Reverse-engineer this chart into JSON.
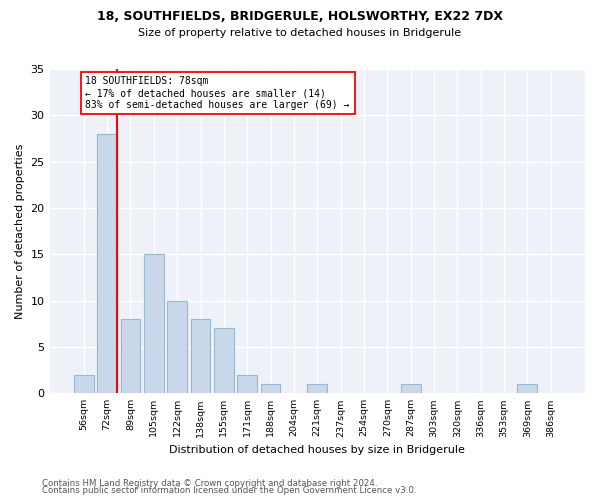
{
  "title": "18, SOUTHFIELDS, BRIDGERULE, HOLSWORTHY, EX22 7DX",
  "subtitle": "Size of property relative to detached houses in Bridgerule",
  "xlabel": "Distribution of detached houses by size in Bridgerule",
  "ylabel": "Number of detached properties",
  "bar_color": "#c8d8ea",
  "bar_edgecolor": "#9ab8cc",
  "bg_color": "#eef2f8",
  "grid_color": "#ffffff",
  "categories": [
    "56sqm",
    "72sqm",
    "89sqm",
    "105sqm",
    "122sqm",
    "138sqm",
    "155sqm",
    "171sqm",
    "188sqm",
    "204sqm",
    "221sqm",
    "237sqm",
    "254sqm",
    "270sqm",
    "287sqm",
    "303sqm",
    "320sqm",
    "336sqm",
    "353sqm",
    "369sqm",
    "386sqm"
  ],
  "values": [
    2,
    28,
    8,
    15,
    10,
    8,
    7,
    2,
    1,
    0,
    1,
    0,
    0,
    0,
    1,
    0,
    0,
    0,
    0,
    1,
    0
  ],
  "annotation_line1": "18 SOUTHFIELDS: 78sqm",
  "annotation_line2": "← 17% of detached houses are smaller (14)",
  "annotation_line3": "83% of semi-detached houses are larger (69) →",
  "vline_index": 1.42,
  "ylim": [
    0,
    35
  ],
  "yticks": [
    0,
    5,
    10,
    15,
    20,
    25,
    30,
    35
  ],
  "footer_line1": "Contains HM Land Registry data © Crown copyright and database right 2024.",
  "footer_line2": "Contains public sector information licensed under the Open Government Licence v3.0."
}
